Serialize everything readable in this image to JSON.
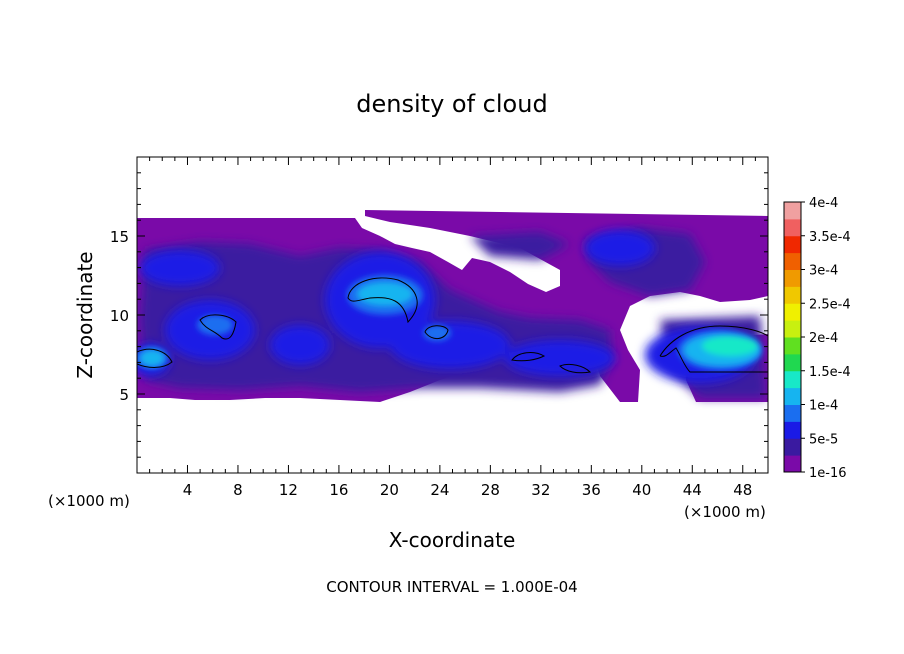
{
  "chart_data": {
    "type": "heatmap",
    "title": "density of cloud",
    "xlabel": "X-coordinate",
    "ylabel": "Z-coordinate",
    "x_unit_left": "(×1000 m)",
    "x_unit_right": "(×1000 m)",
    "xlim": [
      0,
      50
    ],
    "ylim": [
      0,
      20
    ],
    "x_ticks": [
      4,
      8,
      12,
      16,
      20,
      24,
      28,
      32,
      36,
      40,
      44,
      48
    ],
    "x_tick_labels": [
      "4",
      "8",
      "12",
      "16",
      "20",
      "24",
      "28",
      "32",
      "36",
      "40",
      "44",
      "48"
    ],
    "y_ticks": [
      5,
      10,
      15
    ],
    "y_tick_labels": [
      "5",
      "10",
      "15"
    ],
    "footer": "CONTOUR INTERVAL = 1.000E-04",
    "contour_interval": 0.0001,
    "colorbar": {
      "labels": [
        "1e-16",
        "5e-5",
        "1e-4",
        "1.5e-4",
        "2e-4",
        "2.5e-4",
        "3e-4",
        "3.5e-4",
        "4e-4"
      ],
      "colors": [
        "#7a0aa8",
        "#3a1aa0",
        "#1a1ae6",
        "#1a6ef0",
        "#16b4f0",
        "#18e8c8",
        "#20d850",
        "#60e020",
        "#c8f010",
        "#f0f000",
        "#f0c800",
        "#f09a00",
        "#f06000",
        "#f02800",
        "#f06060",
        "#f0a0a0"
      ]
    },
    "regions": {
      "cloud_base_z": 4.6,
      "cloud_top_z": 16.0,
      "max_value_location": {
        "x": 45,
        "z": 8,
        "value_approx": 0.00015
      }
    }
  }
}
